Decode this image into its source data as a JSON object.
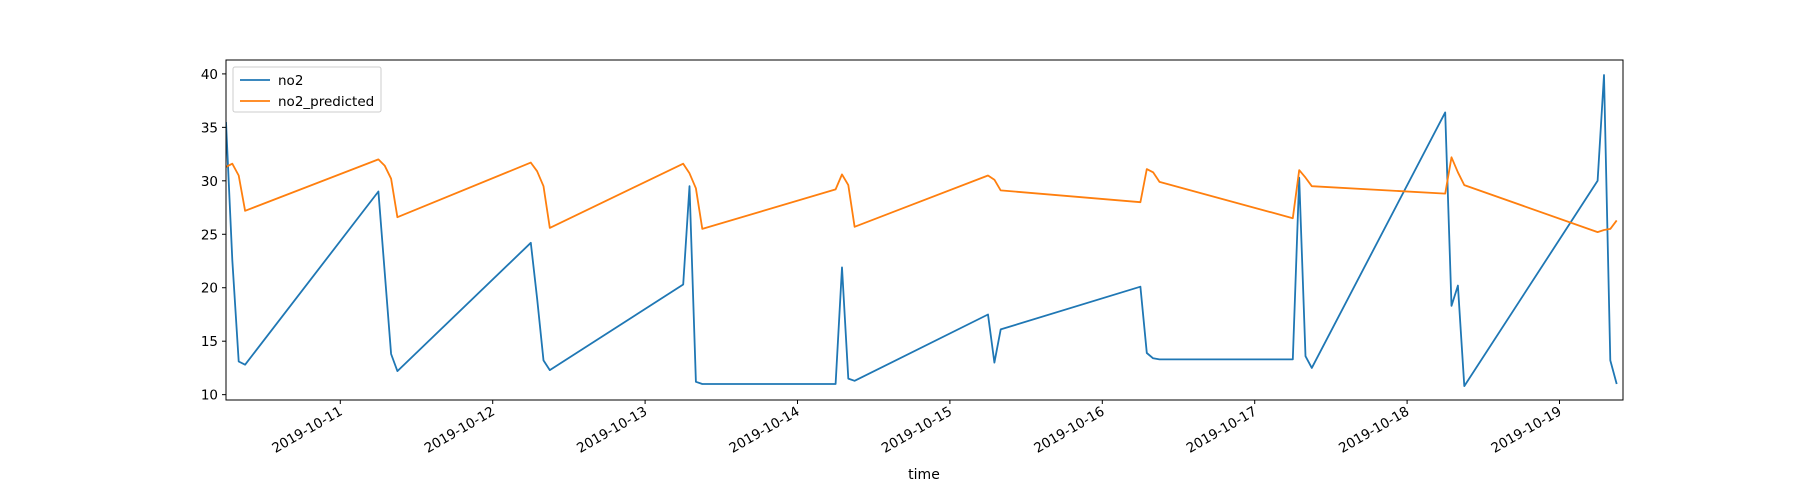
{
  "chart_data": {
    "type": "line",
    "title": "",
    "xlabel": "time",
    "ylabel": "",
    "xlim": [
      "2019-10-10 06:00",
      "2019-10-19 10:00"
    ],
    "ylim": [
      9.5,
      41.3
    ],
    "yticks": [
      10,
      15,
      20,
      25,
      30,
      35,
      40
    ],
    "xticks": [
      "2019-10-11",
      "2019-10-12",
      "2019-10-13",
      "2019-10-14",
      "2019-10-15",
      "2019-10-16",
      "2019-10-17",
      "2019-10-18",
      "2019-10-19"
    ],
    "grid": false,
    "legend_position": "top-left",
    "series": [
      {
        "name": "no2",
        "color": "#1f77b4",
        "points": [
          [
            "2019-10-10 06:00",
            35.5
          ],
          [
            "2019-10-10 07:00",
            22.6
          ],
          [
            "2019-10-10 08:00",
            13.1
          ],
          [
            "2019-10-10 09:00",
            12.8
          ],
          [
            "2019-10-11 06:00",
            29.0
          ],
          [
            "2019-10-11 08:00",
            13.8
          ],
          [
            "2019-10-11 09:00",
            12.2
          ],
          [
            "2019-10-12 06:00",
            24.2
          ],
          [
            "2019-10-12 07:00",
            19.0
          ],
          [
            "2019-10-12 08:00",
            13.2
          ],
          [
            "2019-10-12 09:00",
            12.3
          ],
          [
            "2019-10-13 06:00",
            20.3
          ],
          [
            "2019-10-13 07:00",
            29.5
          ],
          [
            "2019-10-13 08:00",
            11.2
          ],
          [
            "2019-10-13 09:00",
            11.0
          ],
          [
            "2019-10-14 06:00",
            11.0
          ],
          [
            "2019-10-14 07:00",
            21.9
          ],
          [
            "2019-10-14 08:00",
            11.5
          ],
          [
            "2019-10-14 09:00",
            11.3
          ],
          [
            "2019-10-15 06:00",
            17.5
          ],
          [
            "2019-10-15 07:00",
            13.0
          ],
          [
            "2019-10-15 08:00",
            16.1
          ],
          [
            "2019-10-16 06:00",
            20.1
          ],
          [
            "2019-10-16 07:00",
            13.9
          ],
          [
            "2019-10-16 08:00",
            13.4
          ],
          [
            "2019-10-16 09:00",
            13.3
          ],
          [
            "2019-10-17 06:00",
            13.3
          ],
          [
            "2019-10-17 07:00",
            30.3
          ],
          [
            "2019-10-17 08:00",
            13.6
          ],
          [
            "2019-10-17 09:00",
            12.5
          ],
          [
            "2019-10-18 06:00",
            36.4
          ],
          [
            "2019-10-18 07:00",
            18.3
          ],
          [
            "2019-10-18 08:00",
            20.2
          ],
          [
            "2019-10-18 09:00",
            10.8
          ],
          [
            "2019-10-19 06:00",
            30.0
          ],
          [
            "2019-10-19 07:00",
            39.9
          ],
          [
            "2019-10-19 08:00",
            13.2
          ],
          [
            "2019-10-19 09:00",
            11.0
          ]
        ]
      },
      {
        "name": "no2_predicted",
        "color": "#ff7f0e",
        "points": [
          [
            "2019-10-10 06:00",
            31.3
          ],
          [
            "2019-10-10 07:00",
            31.6
          ],
          [
            "2019-10-10 08:00",
            30.5
          ],
          [
            "2019-10-10 09:00",
            27.2
          ],
          [
            "2019-10-11 06:00",
            32.0
          ],
          [
            "2019-10-11 07:00",
            31.4
          ],
          [
            "2019-10-11 08:00",
            30.2
          ],
          [
            "2019-10-11 09:00",
            26.6
          ],
          [
            "2019-10-12 06:00",
            31.7
          ],
          [
            "2019-10-12 07:00",
            30.9
          ],
          [
            "2019-10-12 08:00",
            29.5
          ],
          [
            "2019-10-12 09:00",
            25.6
          ],
          [
            "2019-10-13 06:00",
            31.6
          ],
          [
            "2019-10-13 07:00",
            30.7
          ],
          [
            "2019-10-13 08:00",
            29.3
          ],
          [
            "2019-10-13 09:00",
            25.5
          ],
          [
            "2019-10-14 06:00",
            29.2
          ],
          [
            "2019-10-14 07:00",
            30.6
          ],
          [
            "2019-10-14 08:00",
            29.6
          ],
          [
            "2019-10-14 09:00",
            25.7
          ],
          [
            "2019-10-15 06:00",
            30.5
          ],
          [
            "2019-10-15 07:00",
            30.1
          ],
          [
            "2019-10-15 08:00",
            29.1
          ],
          [
            "2019-10-16 06:00",
            28.0
          ],
          [
            "2019-10-16 07:00",
            31.1
          ],
          [
            "2019-10-16 08:00",
            30.8
          ],
          [
            "2019-10-16 09:00",
            29.9
          ],
          [
            "2019-10-17 06:00",
            26.5
          ],
          [
            "2019-10-17 07:00",
            31.0
          ],
          [
            "2019-10-17 08:00",
            30.3
          ],
          [
            "2019-10-17 09:00",
            29.5
          ],
          [
            "2019-10-18 06:00",
            28.8
          ],
          [
            "2019-10-18 07:00",
            32.2
          ],
          [
            "2019-10-18 08:00",
            30.8
          ],
          [
            "2019-10-18 09:00",
            29.6
          ],
          [
            "2019-10-19 06:00",
            25.2
          ],
          [
            "2019-10-19 07:00",
            25.4
          ],
          [
            "2019-10-19 08:00",
            25.5
          ],
          [
            "2019-10-19 09:00",
            26.3
          ]
        ]
      }
    ]
  }
}
